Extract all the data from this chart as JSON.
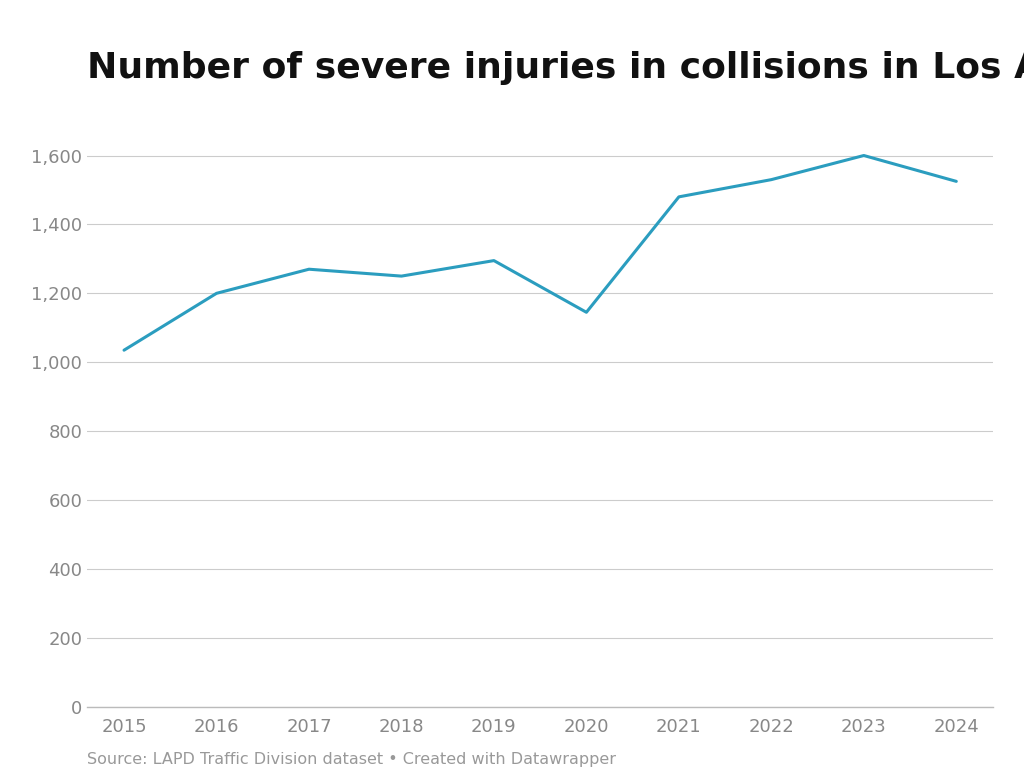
{
  "years": [
    2015,
    2016,
    2017,
    2018,
    2019,
    2020,
    2021,
    2022,
    2023,
    2024
  ],
  "values": [
    1035,
    1200,
    1270,
    1250,
    1295,
    1145,
    1480,
    1530,
    1600,
    1525
  ],
  "line_color": "#2b9dbf",
  "line_width": 2.2,
  "title": "Number of severe injuries in collisions in Los Angeles",
  "title_fontsize": 26,
  "title_fontweight": "bold",
  "ylim": [
    0,
    1700
  ],
  "yticks": [
    0,
    200,
    400,
    600,
    800,
    1000,
    1200,
    1400,
    1600
  ],
  "ytick_labels": [
    "0",
    "200",
    "400",
    "600",
    "800",
    "1,000",
    "1,200",
    "1,400",
    "1,600"
  ],
  "xlim_left": 2014.6,
  "xlim_right": 2024.4,
  "background_color": "#ffffff",
  "grid_color": "#cccccc",
  "tick_label_color": "#888888",
  "source_text": "Source: LAPD Traffic Division dataset • Created with Datawrapper",
  "source_fontsize": 11.5
}
